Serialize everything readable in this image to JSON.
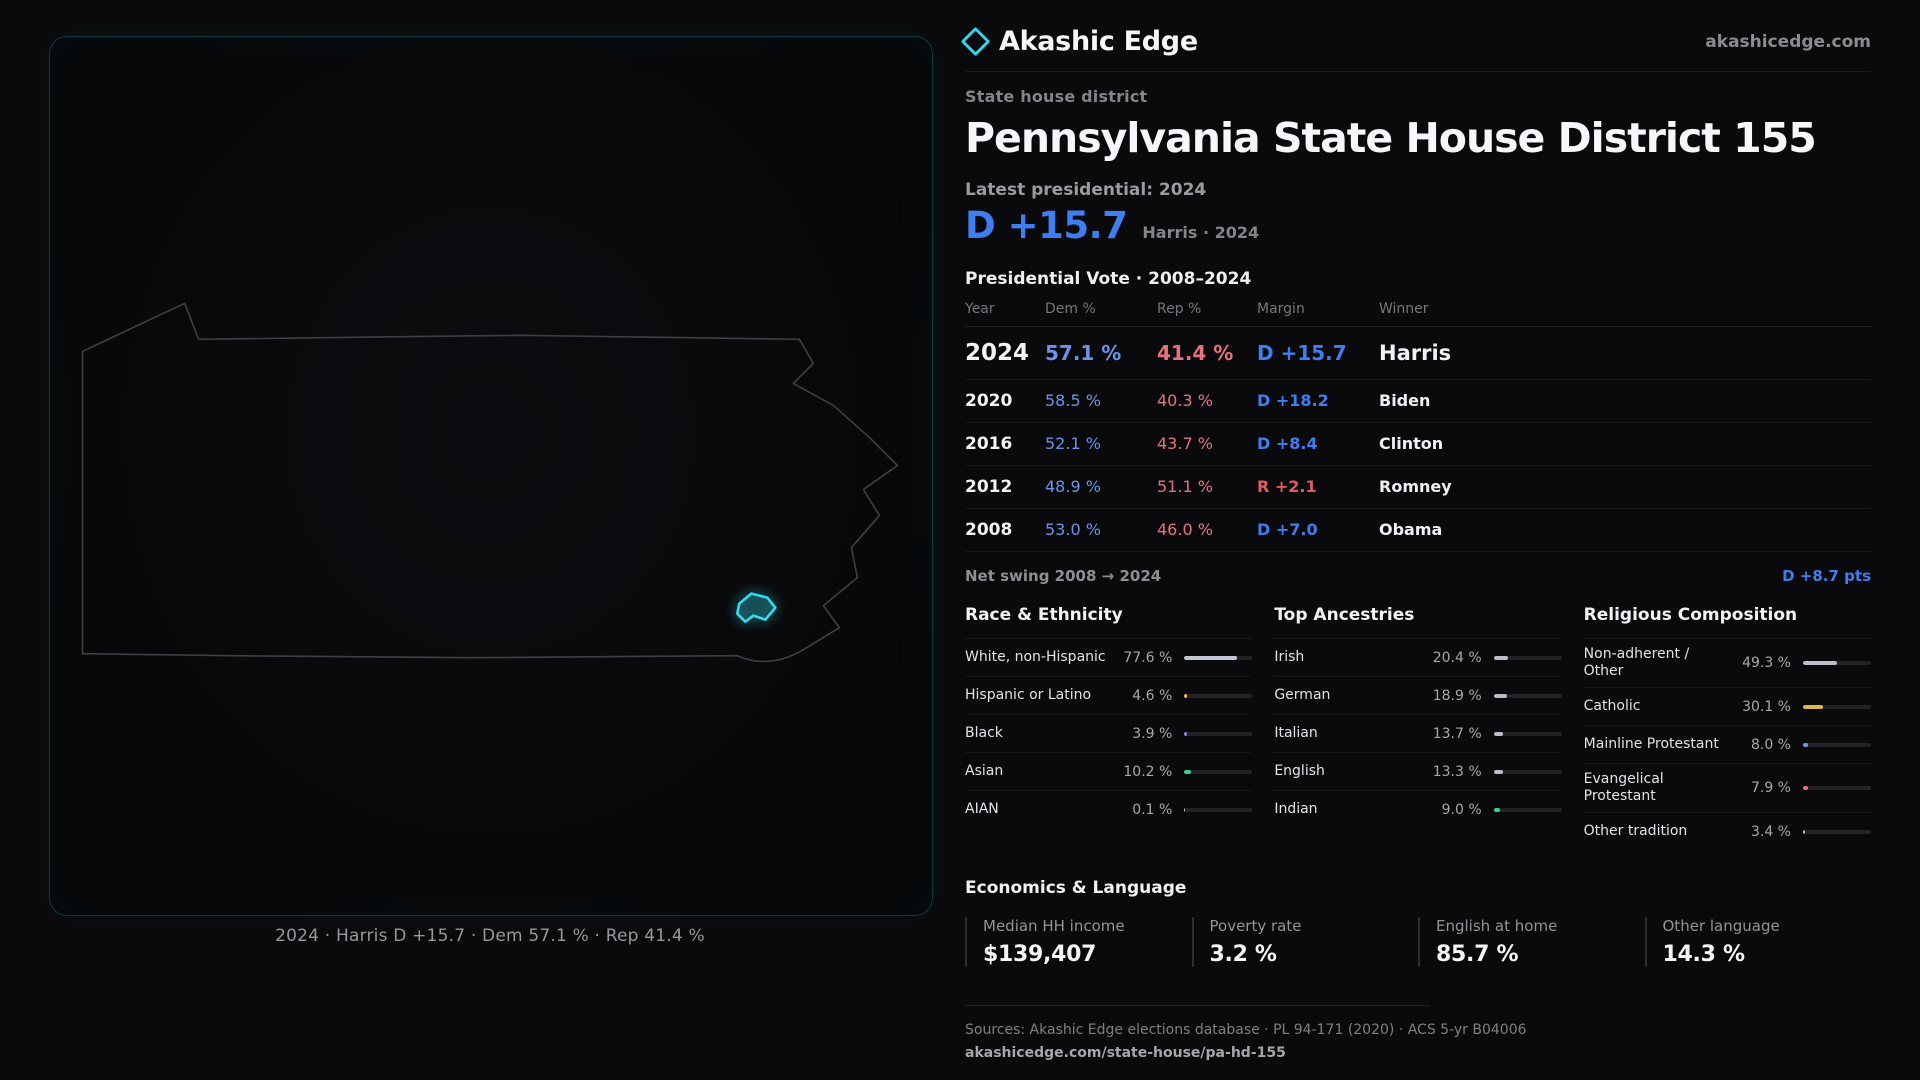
{
  "brand": {
    "name": "Akashic Edge",
    "domain": "akashicedge.com"
  },
  "header": {
    "kicker": "State house district",
    "title": "Pennsylvania State House District 155"
  },
  "latest": {
    "label": "Latest presidential: 2024",
    "margin": "D +15.7",
    "detail": "Harris · 2024"
  },
  "vote_table": {
    "title": "Presidential Vote · 2008–2024",
    "columns": [
      "Year",
      "Dem %",
      "Rep %",
      "Margin",
      "Winner"
    ],
    "rows": [
      {
        "year": "2024",
        "dem": "57.1 %",
        "rep": "41.4 %",
        "margin": "D +15.7",
        "winner": "Harris"
      },
      {
        "year": "2020",
        "dem": "58.5 %",
        "rep": "40.3 %",
        "margin": "D +18.2",
        "winner": "Biden"
      },
      {
        "year": "2016",
        "dem": "52.1 %",
        "rep": "43.7 %",
        "margin": "D +8.4",
        "winner": "Clinton"
      },
      {
        "year": "2012",
        "dem": "48.9 %",
        "rep": "51.1 %",
        "margin": "R +2.1",
        "winner": "Romney"
      },
      {
        "year": "2008",
        "dem": "53.0 %",
        "rep": "46.0 %",
        "margin": "D +7.0",
        "winner": "Obama"
      }
    ]
  },
  "net_swing": {
    "label": "Net swing 2008 → 2024",
    "value": "D +8.7 pts"
  },
  "demographics": [
    {
      "title": "Race & Ethnicity",
      "rows": [
        {
          "label": "White, non-Hispanic",
          "value": "77.6 %",
          "pct": 77.6,
          "color": "#c3c8d2"
        },
        {
          "label": "Hispanic or Latino",
          "value": "4.6 %",
          "pct": 4.6,
          "color": "#e5c05c"
        },
        {
          "label": "Black",
          "value": "3.9 %",
          "pct": 3.9,
          "color": "#8a7df2"
        },
        {
          "label": "Asian",
          "value": "10.2 %",
          "pct": 10.2,
          "color": "#3ecf8e"
        },
        {
          "label": "AIAN",
          "value": "0.1 %",
          "pct": 0.1,
          "color": "#c3c8d2"
        }
      ]
    },
    {
      "title": "Top Ancestries",
      "rows": [
        {
          "label": "Irish",
          "value": "20.4 %",
          "pct": 20.4,
          "color": "#b9bec9"
        },
        {
          "label": "German",
          "value": "18.9 %",
          "pct": 18.9,
          "color": "#b9bec9"
        },
        {
          "label": "Italian",
          "value": "13.7 %",
          "pct": 13.7,
          "color": "#b9bec9"
        },
        {
          "label": "English",
          "value": "13.3 %",
          "pct": 13.3,
          "color": "#b9bec9"
        },
        {
          "label": "Indian",
          "value": "9.0 %",
          "pct": 9.0,
          "color": "#3ecf8e"
        }
      ]
    },
    {
      "title": "Religious Composition",
      "rows": [
        {
          "label": "Non-adherent / Other",
          "value": "49.3 %",
          "pct": 49.3,
          "color": "#b9bec9"
        },
        {
          "label": "Catholic",
          "value": "30.1 %",
          "pct": 30.1,
          "color": "#e0b44f"
        },
        {
          "label": "Mainline Protestant",
          "value": "8.0 %",
          "pct": 8.0,
          "color": "#5aa2f2"
        },
        {
          "label": "Evangelical Protestant",
          "value": "7.9 %",
          "pct": 7.9,
          "color": "#ef6a8c"
        },
        {
          "label": "Other tradition",
          "value": "3.4 %",
          "pct": 3.4,
          "color": "#b9bec9"
        }
      ]
    }
  ],
  "economics": {
    "title": "Economics & Language",
    "stats": [
      {
        "label": "Median HH income",
        "value": "$139,407"
      },
      {
        "label": "Poverty rate",
        "value": "3.2 %"
      },
      {
        "label": "English at home",
        "value": "85.7 %"
      },
      {
        "label": "Other language",
        "value": "14.3 %"
      }
    ]
  },
  "map": {
    "caption": "2024 · Harris D +15.7 · Dem 57.1 % · Rep 41.4 %"
  },
  "footer": {
    "sources": "Sources: Akashic Edge elections database · PL 94-171 (2020) · ACS 5-yr B04006",
    "permalink": "akashicedge.com/state-house/pa-hd-155"
  },
  "colors": {
    "dem": "#6b93ea",
    "dem-strong": "#3f7ef0",
    "rep": "#e4737f",
    "rep-strong": "#e25a62",
    "accent": "#2fd4e6"
  }
}
